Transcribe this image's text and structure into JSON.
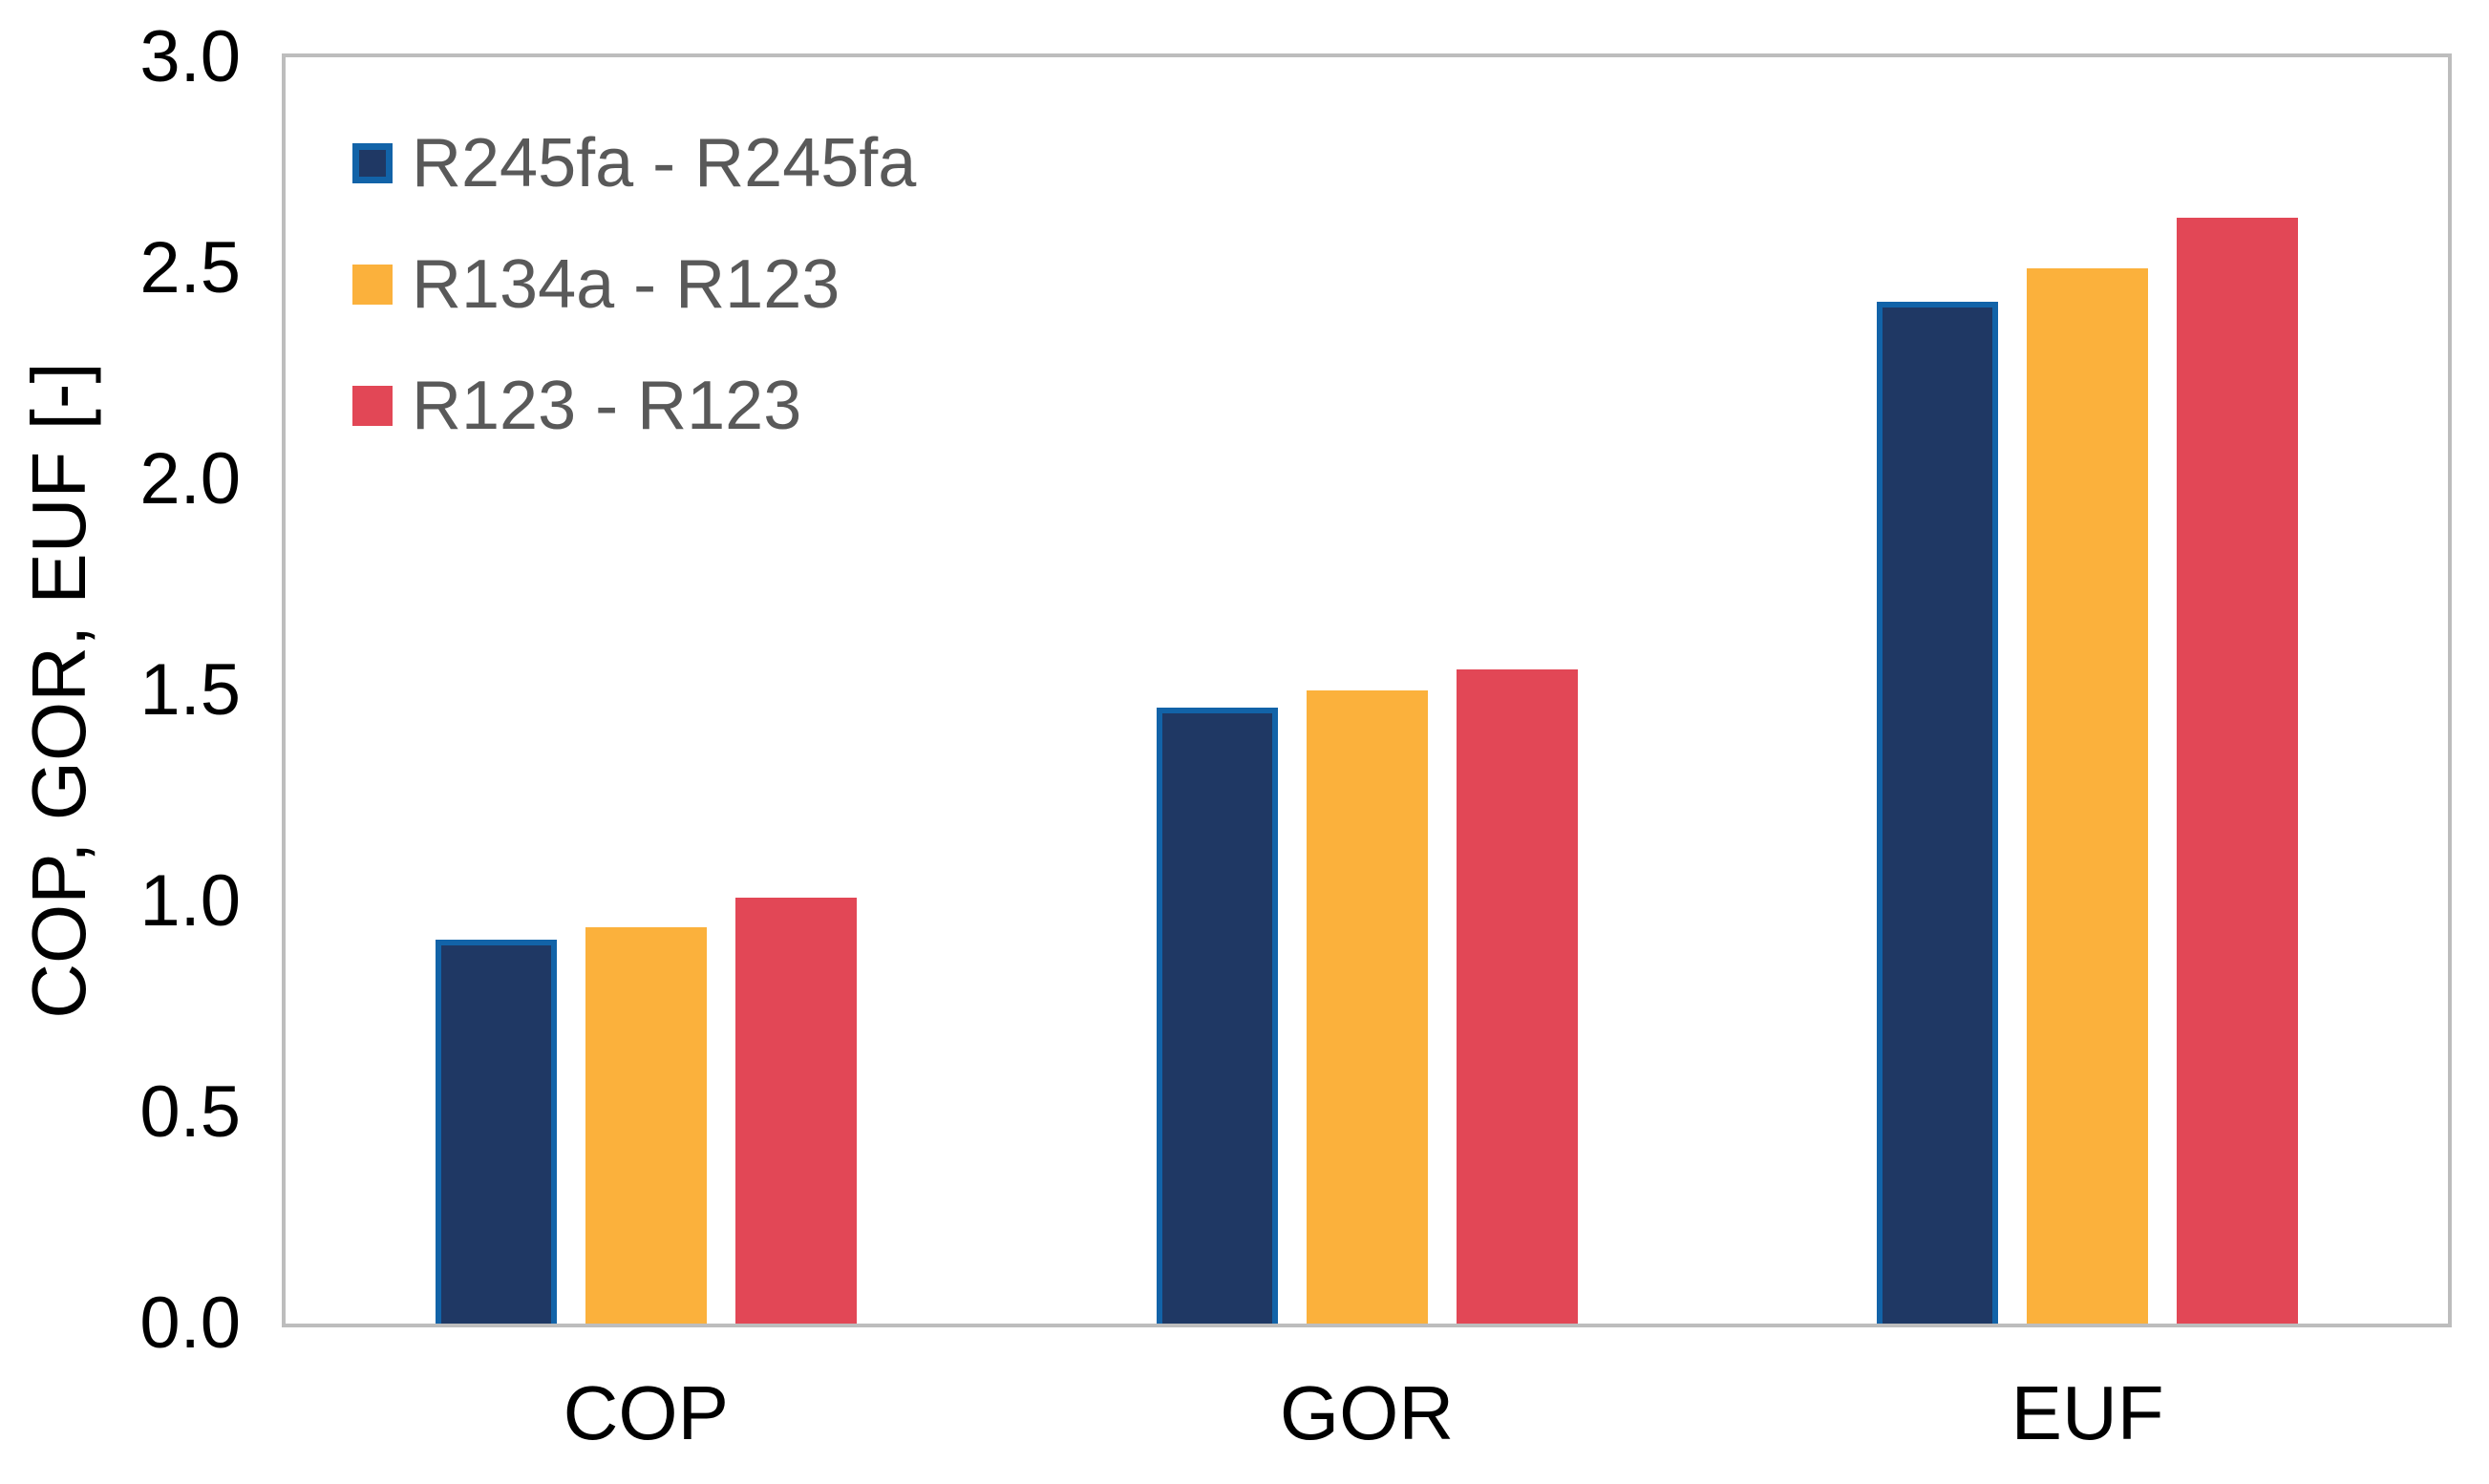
{
  "chart_data": {
    "type": "bar",
    "title": "",
    "categories": [
      "COP",
      "GOR",
      "EUF"
    ],
    "series": [
      {
        "name": "R245fa - R245fa",
        "color": "#1F3864",
        "border_color": "#1263A8",
        "values": [
          0.91,
          1.46,
          2.42
        ]
      },
      {
        "name": "R134a - R123",
        "color": "#FBB13C",
        "values": [
          0.94,
          1.5,
          2.5
        ]
      },
      {
        "name": "R123 - R123",
        "color": "#E24756",
        "values": [
          1.01,
          1.55,
          2.62
        ]
      }
    ],
    "xlabel": "",
    "ylabel": "COP, GOR, EUF [-]",
    "ylim": [
      0,
      3.0
    ],
    "yticks": [
      "0.0",
      "0.5",
      "1.0",
      "1.5",
      "2.0",
      "2.5",
      "3.0"
    ],
    "grid": false,
    "legend_position": "top-left-inside",
    "plot_background": "#ffffff",
    "axis_color": "#BDBDBD",
    "tick_text_color": "#000000",
    "legend_text_color": "#595959"
  }
}
